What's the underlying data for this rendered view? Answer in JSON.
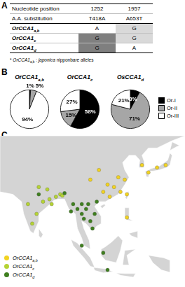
{
  "panels": {
    "a": "A",
    "b": "B",
    "c": "C"
  },
  "table": {
    "header": [
      [
        "Nucleotide position",
        "1252",
        "1957"
      ],
      [
        "A.A. substitution",
        "T418A",
        "A653T"
      ]
    ],
    "rows": [
      {
        "name": [
          {
            "text": "OrCCA1"
          },
          {
            "text": "a,b",
            "style": "sub"
          }
        ],
        "cells": [
          {
            "text": "A",
            "color": "#ffffff"
          },
          {
            "text": "G",
            "color": "#d9d9d9"
          }
        ]
      },
      {
        "name": [
          {
            "text": "OrCCA1"
          },
          {
            "text": "c",
            "style": "sub"
          }
        ],
        "cells": [
          {
            "text": "G",
            "color": "#7f7f7f"
          },
          {
            "text": "G",
            "color": "#d9d9d9"
          }
        ]
      },
      {
        "name": [
          {
            "text": "OrCCA1"
          },
          {
            "text": "d",
            "style": "sub"
          }
        ],
        "cells": [
          {
            "text": "G",
            "color": "#7f7f7f"
          },
          {
            "text": "A",
            "color": "#ffffff"
          }
        ]
      }
    ],
    "footnote": [
      {
        "text": "* "
      },
      {
        "text": "OrCCA1",
        "style": "italic"
      },
      {
        "text": "a,b",
        "style": "sub"
      },
      {
        "text": " : "
      },
      {
        "text": "japonica",
        "style": "italic"
      },
      {
        "text": " nipponbare alleles"
      }
    ]
  },
  "chart_data": [
    {
      "type": "pie",
      "title": [
        {
          "text": "OrCCA1"
        },
        {
          "text": "a,b",
          "style": "sub"
        }
      ],
      "categories": [
        "Or-I",
        "Or-II",
        "Or-III"
      ],
      "values": [
        1,
        5,
        94
      ],
      "value_labels": [
        "1%",
        "5%",
        "94%"
      ],
      "colors": [
        "#000000",
        "#a6a6a6",
        "#ffffff"
      ],
      "data_labels": true
    },
    {
      "type": "pie",
      "title": [
        {
          "text": "OrCCA1"
        },
        {
          "text": "c",
          "style": "sub"
        }
      ],
      "categories": [
        "Or-I",
        "Or-II",
        "Or-III"
      ],
      "values": [
        58,
        15,
        27
      ],
      "value_labels": [
        "58%",
        "15%",
        "27%"
      ],
      "colors": [
        "#000000",
        "#a6a6a6",
        "#ffffff"
      ],
      "data_labels": true
    },
    {
      "type": "pie",
      "title": [
        {
          "text": "OsCCA1"
        },
        {
          "text": "d",
          "style": "sub"
        }
      ],
      "categories": [
        "Or-I",
        "Or-II",
        "Or-III"
      ],
      "values": [
        8,
        71,
        21
      ],
      "value_labels": [
        "8%",
        "71%",
        "21%"
      ],
      "colors": [
        "#000000",
        "#a6a6a6",
        "#ffffff"
      ],
      "data_labels": true,
      "legend": "right"
    }
  ],
  "map": {
    "series": [
      {
        "name": [
          {
            "text": "OrCCA1"
          },
          {
            "text": "a,b",
            "style": "sub"
          }
        ],
        "color": "#f2d321",
        "points": [
          [
            113,
            23
          ],
          [
            110,
            25
          ],
          [
            118,
            25
          ],
          [
            120,
            30
          ],
          [
            117,
            31
          ],
          [
            112,
            28
          ],
          [
            115,
            27
          ],
          [
            121,
            24
          ],
          [
            128,
            36
          ],
          [
            131,
            33
          ],
          [
            135,
            35
          ],
          [
            139,
            36
          ],
          [
            104,
            30
          ],
          [
            108,
            34
          ],
          [
            121,
            14.5
          ]
        ]
      },
      {
        "name": [
          {
            "text": "OrCCA1"
          },
          {
            "text": "c",
            "style": "sub"
          }
        ],
        "color": "#b5d334",
        "points": [
          [
            77,
            12
          ],
          [
            79,
            16
          ],
          [
            82,
            21
          ],
          [
            85,
            22
          ],
          [
            88,
            23
          ],
          [
            90,
            24
          ],
          [
            75,
            20
          ],
          [
            80,
            27
          ],
          [
            84,
            26
          ],
          [
            86,
            20
          ],
          [
            91,
            23.5
          ]
        ]
      },
      {
        "name": [
          {
            "text": "OrCCA1"
          },
          {
            "text": "d",
            "style": "sub"
          }
        ],
        "color": "#3f7f1f",
        "points": [
          [
            96,
            20
          ],
          [
            100,
            16
          ],
          [
            102,
            18
          ],
          [
            104,
            13
          ],
          [
            106,
            16
          ],
          [
            105,
            10
          ],
          [
            95,
            17
          ],
          [
            100,
            20
          ],
          [
            103,
            20
          ],
          [
            107,
            21
          ],
          [
            101,
            14
          ],
          [
            98,
            18
          ],
          [
            110,
            0
          ],
          [
            112,
            -7
          ],
          [
            92,
            24.5
          ],
          [
            80,
            24
          ],
          [
            100,
            3
          ]
        ]
      }
    ]
  }
}
